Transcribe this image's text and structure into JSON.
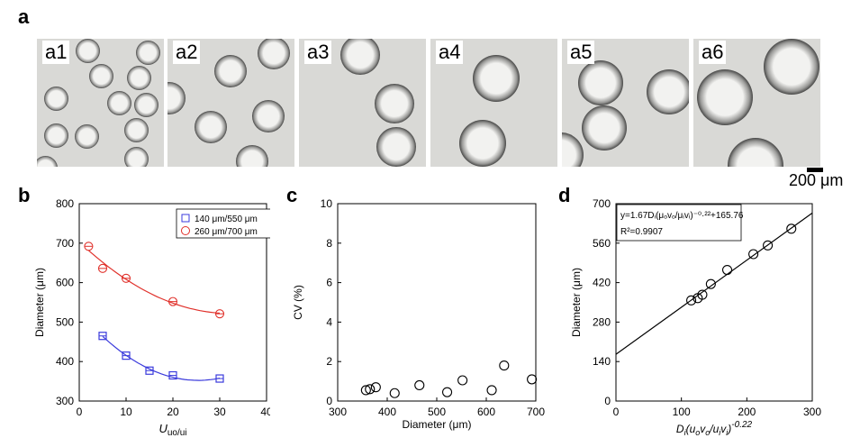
{
  "panels": {
    "a": "a",
    "b": "b",
    "c": "c",
    "d": "d"
  },
  "micrographs": [
    "a1",
    "a2",
    "a3",
    "a4",
    "a5",
    "a6"
  ],
  "scale_bar": "200 μm",
  "chart_data": [
    {
      "id": "b",
      "type": "scatter",
      "xlabel_main": "U",
      "xlabel_sub": "uo/ui",
      "ylabel": "Diameter (μm)",
      "xlim": [
        0,
        40
      ],
      "ylim": [
        300,
        800
      ],
      "xticks": [
        0,
        10,
        20,
        30,
        40
      ],
      "yticks": [
        300,
        400,
        500,
        600,
        700,
        800
      ],
      "legend_position": "top-right",
      "series": [
        {
          "name": "140 μm/550 μm",
          "color": "#3b3bdc",
          "marker": "square",
          "x": [
            5,
            10,
            15,
            20,
            30
          ],
          "y": [
            465,
            415,
            377,
            365,
            357
          ]
        },
        {
          "name": "260 μm/700 μm",
          "color": "#e0302a",
          "marker": "circle",
          "x": [
            2,
            5,
            10,
            20,
            30
          ],
          "y": [
            692,
            636,
            611,
            552,
            521
          ]
        }
      ]
    },
    {
      "id": "c",
      "type": "scatter",
      "xlabel": "Diameter (μm)",
      "ylabel": "CV (%)",
      "xlim": [
        300,
        700
      ],
      "ylim": [
        0,
        10
      ],
      "xticks": [
        300,
        400,
        500,
        600,
        700
      ],
      "yticks": [
        0,
        2,
        4,
        6,
        8,
        10
      ],
      "series": [
        {
          "color": "#000000",
          "marker": "circle",
          "x": [
            357,
            365,
            377,
            415,
            465,
            521,
            552,
            611,
            636,
            692
          ],
          "y": [
            0.55,
            0.6,
            0.7,
            0.4,
            0.8,
            0.45,
            1.05,
            0.55,
            1.8,
            1.1
          ]
        }
      ]
    },
    {
      "id": "d",
      "type": "scatter",
      "xlabel": "D_i(u_o v_o/u_i v_i)^-0.22",
      "ylabel": "Diameter (μm)",
      "xlim": [
        0,
        300
      ],
      "ylim": [
        0,
        700
      ],
      "xticks": [
        0,
        100,
        200,
        300
      ],
      "yticks": [
        0,
        140,
        280,
        420,
        560,
        700
      ],
      "fit": {
        "slope": 1.67,
        "intercept": 165.76
      },
      "annotation": {
        "equation": "y=1.67Dᵢ(μₒvₒ/μᵢvᵢ)⁻⁰·²²+165.76",
        "r2": "R²=0.9907"
      },
      "series": [
        {
          "color": "#000000",
          "marker": "circle",
          "x": [
            115,
            125,
            132,
            145,
            170,
            210,
            232,
            268
          ],
          "y": [
            357,
            365,
            377,
            415,
            465,
            521,
            552,
            611
          ]
        }
      ]
    }
  ]
}
